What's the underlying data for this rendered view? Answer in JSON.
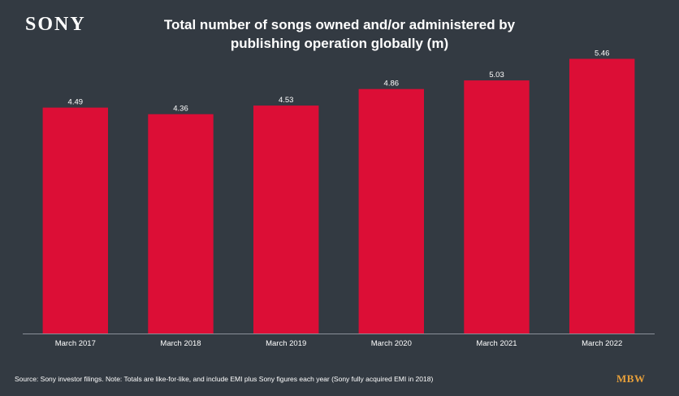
{
  "brand_logo": "SONY",
  "title_lines": [
    "Total number of songs owned and/or administered by",
    "publishing operation globally (m)"
  ],
  "footer": {
    "source": "Source: Sony investor filings. Note: Totals are like-for-like, and include EMI plus Sony figures each year (Sony fully acquired EMI in 2018)",
    "publisher_logo": "MBW"
  },
  "colors": {
    "background": "#333a42",
    "bar": "#dc0e36",
    "text": "#ffffff",
    "publisher_logo": "#e8a03a"
  },
  "chart_data": {
    "type": "bar",
    "categories": [
      "March 2017",
      "March 2018",
      "March 2019",
      "March 2020",
      "March 2021",
      "March 2022"
    ],
    "values": [
      4.49,
      4.36,
      4.53,
      4.86,
      5.03,
      5.46
    ],
    "data_labels": [
      "4.49",
      "4.36",
      "4.53",
      "4.86",
      "5.03",
      "5.46"
    ],
    "title": "Total number of songs owned and/or administered by publishing operation globally (m)",
    "xlabel": "",
    "ylabel": "",
    "ylim": [
      0,
      6
    ],
    "grid": false,
    "legend": "none"
  }
}
